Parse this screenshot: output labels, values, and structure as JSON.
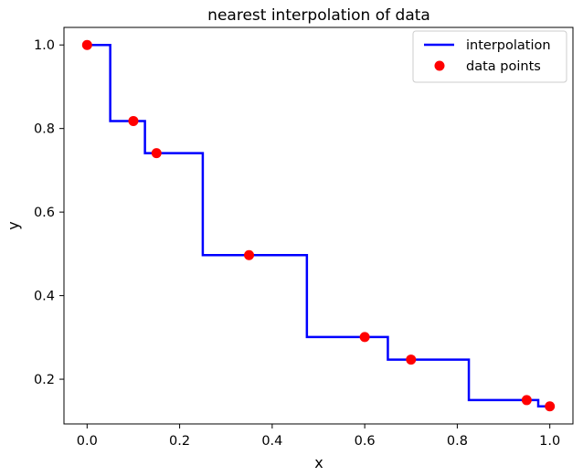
{
  "chart_data": {
    "type": "line",
    "title": "nearest interpolation of data",
    "xlabel": "x",
    "ylabel": "y",
    "xlim": [
      -0.05,
      1.05
    ],
    "ylim": [
      0.093,
      1.042
    ],
    "x_ticks": [
      0.0,
      0.2,
      0.4,
      0.6,
      0.8,
      1.0
    ],
    "y_ticks": [
      0.2,
      0.4,
      0.6,
      0.8,
      1.0
    ],
    "x_tick_labels": [
      "0.0",
      "0.2",
      "0.4",
      "0.6",
      "0.8",
      "1.0"
    ],
    "y_tick_labels": [
      "0.2",
      "0.4",
      "0.6",
      "0.8",
      "1.0"
    ],
    "grid": false,
    "legend_position": "top-right",
    "series": [
      {
        "name": "interpolation",
        "kind": "line",
        "color": "#0000ff",
        "interpolation": "nearest",
        "x": [
          0.0,
          0.1,
          0.15,
          0.35,
          0.6,
          0.7,
          0.95,
          1.0
        ],
        "y": [
          1.0,
          0.818,
          0.741,
          0.497,
          0.301,
          0.247,
          0.15,
          0.135
        ]
      },
      {
        "name": "data points",
        "kind": "scatter",
        "color": "#ff0000",
        "x": [
          0.0,
          0.1,
          0.15,
          0.35,
          0.6,
          0.7,
          0.95,
          1.0
        ],
        "y": [
          1.0,
          0.818,
          0.741,
          0.497,
          0.301,
          0.247,
          0.15,
          0.135
        ]
      }
    ]
  }
}
